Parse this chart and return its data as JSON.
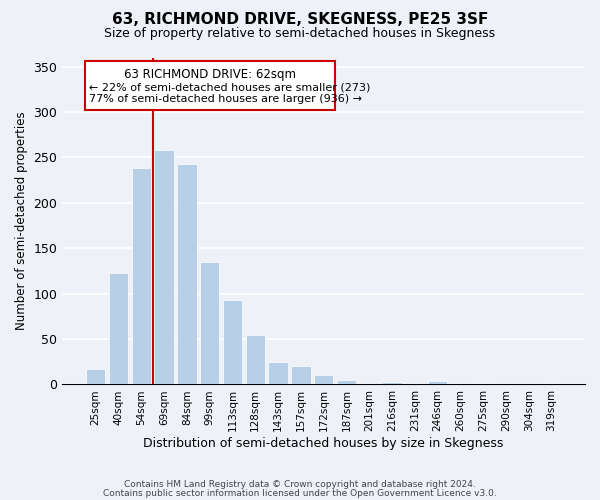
{
  "title": "63, RICHMOND DRIVE, SKEGNESS, PE25 3SF",
  "subtitle": "Size of property relative to semi-detached houses in Skegness",
  "xlabel": "Distribution of semi-detached houses by size in Skegness",
  "ylabel": "Number of semi-detached properties",
  "bin_labels": [
    "25sqm",
    "40sqm",
    "54sqm",
    "69sqm",
    "84sqm",
    "99sqm",
    "113sqm",
    "128sqm",
    "143sqm",
    "157sqm",
    "172sqm",
    "187sqm",
    "201sqm",
    "216sqm",
    "231sqm",
    "246sqm",
    "260sqm",
    "275sqm",
    "290sqm",
    "304sqm",
    "319sqm"
  ],
  "bar_values": [
    17,
    123,
    238,
    258,
    243,
    135,
    93,
    55,
    25,
    20,
    10,
    5,
    0,
    3,
    0,
    4,
    0,
    2,
    0,
    0,
    2
  ],
  "bar_color": "#b8cfe8",
  "bar_edge_color": "#ffffff",
  "property_line_bin_index": 2.5,
  "annotation_title": "63 RICHMOND DRIVE: 62sqm",
  "annotation_line1": "← 22% of semi-detached houses are smaller (273)",
  "annotation_line2": "77% of semi-detached houses are larger (936) →",
  "annotation_box_color": "#ffffff",
  "annotation_box_edgecolor": "#cc0000",
  "property_line_color": "#cc0000",
  "ylim": [
    0,
    360
  ],
  "yticks": [
    0,
    50,
    100,
    150,
    200,
    250,
    300,
    350
  ],
  "footer_line1": "Contains HM Land Registry data © Crown copyright and database right 2024.",
  "footer_line2": "Contains public sector information licensed under the Open Government Licence v3.0.",
  "background_color": "#eef2f8"
}
